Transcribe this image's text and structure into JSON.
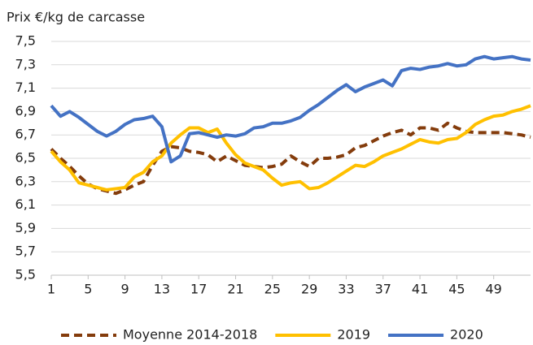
{
  "chart_data": {
    "type": "line",
    "y_label": "Prix €/kg de carcasse",
    "x": [
      1,
      2,
      3,
      4,
      5,
      6,
      7,
      8,
      9,
      10,
      11,
      12,
      13,
      14,
      15,
      16,
      17,
      18,
      19,
      20,
      21,
      22,
      23,
      24,
      25,
      26,
      27,
      28,
      29,
      30,
      31,
      32,
      33,
      34,
      35,
      36,
      37,
      38,
      39,
      40,
      41,
      42,
      43,
      44,
      45,
      46,
      47,
      48,
      49,
      50,
      51,
      52,
      53
    ],
    "xlim": [
      1,
      53
    ],
    "xticks": [
      1,
      5,
      9,
      13,
      17,
      21,
      25,
      29,
      33,
      37,
      41,
      45,
      49
    ],
    "ylim": [
      5.5,
      7.5
    ],
    "yticks": [
      {
        "value": 5.5,
        "label": "5,5"
      },
      {
        "value": 5.7,
        "label": "5,7"
      },
      {
        "value": 5.9,
        "label": "5,9"
      },
      {
        "value": 6.1,
        "label": "6,1"
      },
      {
        "value": 6.3,
        "label": "6,3"
      },
      {
        "value": 6.5,
        "label": "6,5"
      },
      {
        "value": 6.7,
        "label": "6,7"
      },
      {
        "value": 6.9,
        "label": "6,9"
      },
      {
        "value": 7.1,
        "label": "7,1"
      },
      {
        "value": 7.3,
        "label": "7,3"
      },
      {
        "value": 7.5,
        "label": "7,5"
      }
    ],
    "grid": true,
    "legend": "bottom",
    "series": [
      {
        "name": "Moyenne 2014-2018",
        "color": "#843c0c",
        "dashed": true,
        "values": [
          6.58,
          6.5,
          6.43,
          6.35,
          6.28,
          6.24,
          6.22,
          6.2,
          6.23,
          6.27,
          6.3,
          6.44,
          6.56,
          6.6,
          6.59,
          6.56,
          6.55,
          6.53,
          6.47,
          6.52,
          6.48,
          6.44,
          6.43,
          6.42,
          6.43,
          6.45,
          6.52,
          6.47,
          6.43,
          6.5,
          6.5,
          6.51,
          6.53,
          6.59,
          6.61,
          6.65,
          6.69,
          6.72,
          6.74,
          6.7,
          6.76,
          6.76,
          6.74,
          6.8,
          6.76,
          6.73,
          6.72,
          6.72,
          6.72,
          6.72,
          6.71,
          6.7,
          6.68
        ]
      },
      {
        "name": "2019",
        "color": "#ffc000",
        "dashed": false,
        "values": [
          6.56,
          6.47,
          6.4,
          6.29,
          6.27,
          6.25,
          6.23,
          6.24,
          6.25,
          6.34,
          6.38,
          6.47,
          6.52,
          6.63,
          6.7,
          6.76,
          6.76,
          6.72,
          6.75,
          6.63,
          6.53,
          6.46,
          6.43,
          6.4,
          6.33,
          6.27,
          6.29,
          6.3,
          6.24,
          6.25,
          6.29,
          6.34,
          6.39,
          6.44,
          6.43,
          6.47,
          6.52,
          6.55,
          6.58,
          6.62,
          6.66,
          6.64,
          6.63,
          6.66,
          6.67,
          6.72,
          6.79,
          6.83,
          6.86,
          6.87,
          6.9,
          6.92,
          6.95
        ]
      },
      {
        "name": "2020",
        "color": "#4472c4",
        "dashed": false,
        "values": [
          6.95,
          6.86,
          6.9,
          6.85,
          6.79,
          6.73,
          6.69,
          6.73,
          6.79,
          6.83,
          6.84,
          6.86,
          6.77,
          6.47,
          6.52,
          6.71,
          6.72,
          6.7,
          6.68,
          6.7,
          6.69,
          6.71,
          6.76,
          6.77,
          6.8,
          6.8,
          6.82,
          6.85,
          6.91,
          6.96,
          7.02,
          7.08,
          7.13,
          7.07,
          7.11,
          7.14,
          7.17,
          7.12,
          7.25,
          7.27,
          7.26,
          7.28,
          7.29,
          7.31,
          7.29,
          7.3,
          7.35,
          7.37,
          7.35,
          7.36,
          7.37,
          7.35,
          7.34
        ]
      }
    ]
  }
}
